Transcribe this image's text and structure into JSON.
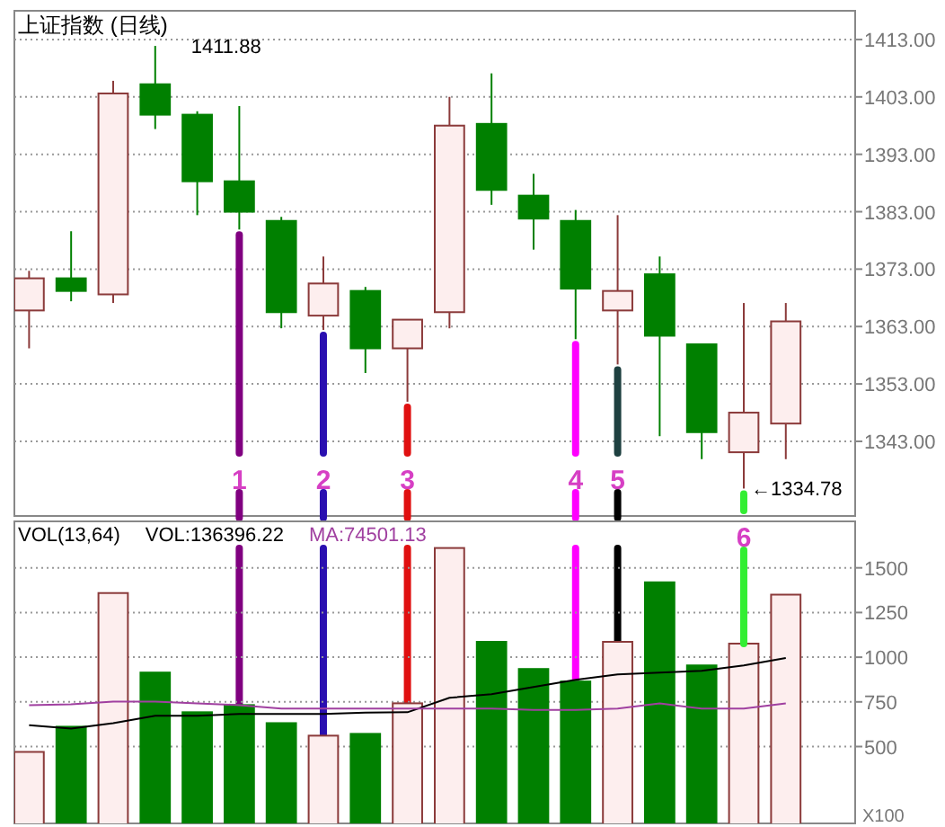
{
  "chart_data": [
    {
      "type": "candlestick",
      "title": "上证指数 (日线)",
      "categories": [
        null,
        null,
        null,
        null,
        null,
        null,
        null,
        null,
        null,
        null,
        null,
        null,
        null,
        null,
        null,
        null,
        null,
        null,
        null
      ],
      "ohlc": [
        [
          1365.8,
          1372.7,
          1359.2,
          1371.4
        ],
        [
          1371.4,
          1379.6,
          1367.4,
          1369.2
        ],
        [
          1368.6,
          1405.8,
          1367.1,
          1403.6
        ],
        [
          1405.2,
          1411.88,
          1397.4,
          1399.9
        ],
        [
          1399.9,
          1400.5,
          1382.4,
          1388.3
        ],
        [
          1388.3,
          1401.4,
          1379.9,
          1383.0
        ],
        [
          1381.4,
          1382.1,
          1362.7,
          1365.5
        ],
        [
          1364.9,
          1375.2,
          1362.4,
          1370.5
        ],
        [
          1369.2,
          1369.9,
          1354.9,
          1359.2
        ],
        [
          1359.2,
          1364.2,
          1349.9,
          1364.2
        ],
        [
          1365.5,
          1403.0,
          1362.7,
          1398.0
        ],
        [
          1398.3,
          1407.1,
          1384.2,
          1386.8
        ],
        [
          1385.8,
          1389.6,
          1376.4,
          1381.8
        ],
        [
          1381.4,
          1383.3,
          1360.8,
          1369.6
        ],
        [
          1365.8,
          1382.4,
          1356.4,
          1369.2
        ],
        [
          1372.1,
          1375.2,
          1343.9,
          1361.4
        ],
        [
          1359.9,
          1359.9,
          1339.9,
          1344.6
        ],
        [
          1341.1,
          1367.1,
          1334.78,
          1348.0
        ],
        [
          1346.1,
          1367.1,
          1339.9,
          1363.9
        ]
      ],
      "colors": [
        "#8b3a3a",
        "#008000",
        "#8b3a3a",
        "#008000",
        "#008000",
        "#008000",
        "#008000",
        "#8b3a3a",
        "#008000",
        "#8b3a3a",
        "#8b3a3a",
        "#008000",
        "#008000",
        "#008000",
        "#8b3a3a",
        "#008000",
        "#008000",
        "#8b3a3a",
        "#8b3a3a"
      ],
      "annotations": [
        "1411.88",
        "←1334.78",
        "1",
        "2",
        "3",
        "4",
        "5"
      ],
      "ylim": [
        1330,
        1418
      ],
      "yticks": [
        {
          "value": 1343,
          "label": "1343.00"
        },
        {
          "value": 1353,
          "label": "1353.00"
        },
        {
          "value": 1363,
          "label": "1363.00"
        },
        {
          "value": 1373,
          "label": "1373.00"
        },
        {
          "value": 1383,
          "label": "1383.00"
        },
        {
          "value": 1393,
          "label": "1393.00"
        },
        {
          "value": 1403,
          "label": "1403.00"
        },
        {
          "value": 1413,
          "label": "1413.00"
        }
      ],
      "grid": "y",
      "tick_labels": "y"
    },
    {
      "type": "bar",
      "categories": [
        null,
        null,
        null,
        null,
        null,
        null,
        null,
        null,
        null,
        null,
        null,
        null,
        null,
        null,
        null,
        null,
        null,
        null,
        null
      ],
      "series": [
        {
          "type": "bar",
          "values": [
            470,
            611,
            1359,
            914,
            692,
            732,
            631,
            561,
            571,
            742,
            1611,
            1086,
            934,
            864,
            1086,
            1419,
            954,
            1076,
            1350
          ],
          "colors": [
            "#8b3a3a",
            "#008000",
            "#8b3a3a",
            "#008000",
            "#008000",
            "#008000",
            "#008000",
            "#8b3a3a",
            "#008000",
            "#8b3a3a",
            "#8b3a3a",
            "#008000",
            "#008000",
            "#008000",
            "#8b3a3a",
            "#008000",
            "#008000",
            "#8b3a3a",
            "#8b3a3a"
          ]
        },
        {
          "type": "line",
          "values": [
            620,
            601,
            631,
            672,
            672,
            682,
            682,
            682,
            690,
            692,
            773,
            793,
            833,
            874,
            904,
            914,
            924,
            954,
            995
          ],
          "color": "#000000"
        },
        {
          "type": "line",
          "values": [
            732,
            737,
            752,
            752,
            742,
            732,
            712,
            712,
            712,
            712,
            712,
            712,
            705,
            705,
            712,
            742,
            712,
            712,
            742
          ],
          "color": "#a040a0"
        }
      ],
      "annotations": [
        "VOL(13,64)",
        "VOL:136396.22",
        "MA:74501.13",
        "6"
      ],
      "ylabel": "X100",
      "ylim": [
        70,
        1760
      ],
      "yticks": [
        500,
        750,
        1000,
        1250,
        1500
      ],
      "grid": "y",
      "tick_labels": "y"
    }
  ]
}
